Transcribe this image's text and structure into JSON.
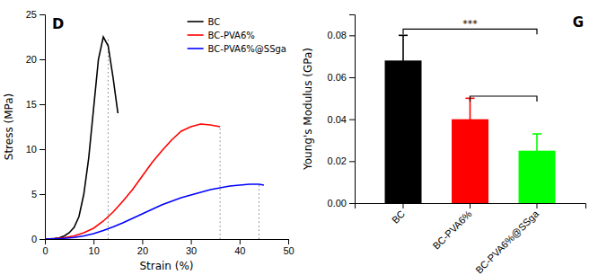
{
  "chart_data": [
    {
      "type": "line",
      "title": "D",
      "xlabel": "Strain (%)",
      "ylabel": "Stress (MPa)",
      "xlim": [
        0,
        50
      ],
      "ylim": [
        0,
        25
      ],
      "xticks": [
        0,
        10,
        20,
        30,
        40,
        50
      ],
      "yticks": [
        0,
        5,
        10,
        15,
        20,
        25
      ],
      "legend": "upper right",
      "grid": false,
      "series": [
        {
          "name": "BC",
          "color": "black",
          "x": [
            0,
            1,
            2,
            3,
            4,
            5,
            6,
            7,
            8,
            9,
            10,
            11,
            12,
            13,
            14,
            15
          ],
          "values": [
            0,
            0.02,
            0.06,
            0.15,
            0.35,
            0.7,
            1.3,
            2.5,
            5.0,
            9.0,
            14.5,
            20.0,
            22.5,
            21.5,
            18.0,
            14.0
          ]
        },
        {
          "name": "BC-PVA6%",
          "color": "red",
          "x": [
            0,
            2,
            4,
            6,
            8,
            10,
            12,
            14,
            16,
            18,
            20,
            22,
            24,
            26,
            28,
            30,
            32,
            34,
            36
          ],
          "values": [
            0,
            0.05,
            0.15,
            0.35,
            0.7,
            1.2,
            2.0,
            3.0,
            4.2,
            5.5,
            7.0,
            8.5,
            9.8,
            11.0,
            12.0,
            12.5,
            12.8,
            12.7,
            12.5
          ]
        },
        {
          "name": "BC-PVA6%@SSga",
          "color": "blue",
          "x": [
            0,
            2,
            4,
            6,
            8,
            10,
            12,
            14,
            16,
            18,
            20,
            22,
            24,
            26,
            28,
            30,
            32,
            34,
            36,
            38,
            40,
            42,
            44,
            45
          ],
          "values": [
            0,
            0.03,
            0.08,
            0.18,
            0.35,
            0.6,
            0.95,
            1.35,
            1.8,
            2.3,
            2.8,
            3.3,
            3.8,
            4.2,
            4.6,
            4.9,
            5.2,
            5.5,
            5.7,
            5.9,
            6.0,
            6.1,
            6.1,
            6.0
          ]
        }
      ],
      "reference_lines": [
        {
          "x": 13,
          "y": 22.5
        },
        {
          "x": 36,
          "y": 12.5
        },
        {
          "x": 44,
          "y": 6.1
        }
      ]
    },
    {
      "type": "bar",
      "title": "G",
      "ylabel": "Young's Modulus (GPa)",
      "ylim": [
        0,
        0.09
      ],
      "yticks": [
        {
          "value": 0,
          "label": "0.00"
        },
        0.02,
        0.04,
        0.06,
        0.08
      ],
      "categories": [
        "BC",
        "BC-PVA6%",
        "BC-PVA6%@SSga"
      ],
      "values": [
        0.068,
        0.04,
        0.025
      ],
      "errors": [
        0.012,
        0.01,
        0.008
      ],
      "colors": [
        "black",
        "red",
        "lime"
      ],
      "grid": false,
      "brackets": [
        {
          "from": "BC",
          "to": "BC-PVA6%@SSga",
          "y": 0.083,
          "label": "***"
        },
        {
          "from": "BC-PVA6%",
          "to": "BC-PVA6%@SSga",
          "y": 0.051
        }
      ]
    }
  ]
}
